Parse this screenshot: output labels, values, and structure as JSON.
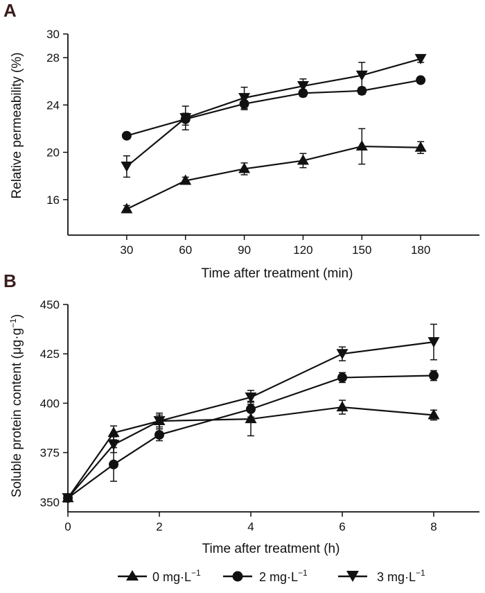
{
  "figure": {
    "legend": [
      {
        "marker": "triangle-up",
        "label": "0 mg·L",
        "sup": "−1"
      },
      {
        "marker": "circle",
        "label": "2 mg·L",
        "sup": "−1"
      },
      {
        "marker": "triangle-down",
        "label": "3 mg·L",
        "sup": "−1"
      }
    ]
  },
  "chart_data": [
    {
      "panel": "A",
      "type": "line",
      "xlabel": "Time after treatment (min)",
      "ylabel": "Relative permeability (%)",
      "x": [
        30,
        60,
        90,
        120,
        150,
        180
      ],
      "xlim": [
        0,
        210
      ],
      "ylim": [
        13,
        30
      ],
      "yticks": [
        16,
        20,
        24,
        28,
        30
      ],
      "xticks": [
        30,
        60,
        90,
        120,
        150,
        180
      ],
      "series": [
        {
          "name": "0 mg·L−1",
          "marker": "triangle-up",
          "values": [
            15.2,
            17.6,
            18.6,
            19.3,
            20.5,
            20.4
          ],
          "errors": [
            0.3,
            0.3,
            0.5,
            0.6,
            1.5,
            0.5
          ]
        },
        {
          "name": "2 mg·L−1",
          "marker": "circle",
          "values": [
            21.4,
            22.8,
            24.1,
            25.0,
            25.2,
            26.1
          ],
          "errors": [
            0.1,
            0.5,
            0.5,
            0.3,
            0.3,
            0.2
          ]
        },
        {
          "name": "3 mg·L−1",
          "marker": "triangle-down",
          "values": [
            18.8,
            22.9,
            24.6,
            25.6,
            26.5,
            27.9
          ],
          "errors": [
            0.9,
            1.0,
            0.9,
            0.6,
            1.1,
            0.3
          ]
        }
      ],
      "legend": "bottom-center",
      "grid": false
    },
    {
      "panel": "B",
      "type": "line",
      "xlabel": "Time after treatment (h)",
      "ylabel": "Soluble protein content (μg·g",
      "ylabel_sup": "−1",
      "ylabel_end": ")",
      "x": [
        0,
        1,
        2,
        4,
        6,
        8
      ],
      "xlim": [
        0,
        9
      ],
      "ylim": [
        345,
        450
      ],
      "yticks": [
        350,
        375,
        400,
        425,
        450
      ],
      "xticks": [
        0,
        2,
        4,
        6,
        8
      ],
      "series": [
        {
          "name": "0 mg·L−1",
          "marker": "triangle-up",
          "values": [
            352,
            385,
            391,
            392,
            398,
            394
          ],
          "errors": [
            1.5,
            3.5,
            3.0,
            8.5,
            3.5,
            2.5
          ]
        },
        {
          "name": "2 mg·L−1",
          "marker": "circle",
          "values": [
            352,
            369,
            384,
            397,
            413,
            414
          ],
          "errors": [
            1.5,
            8.5,
            3.0,
            4.0,
            2.5,
            2.5
          ]
        },
        {
          "name": "3 mg·L−1",
          "marker": "triangle-down",
          "values": [
            352,
            379,
            391,
            403,
            425,
            431
          ],
          "errors": [
            1.5,
            4.0,
            4.0,
            3.5,
            3.5,
            9.0
          ]
        }
      ],
      "legend": "bottom-center",
      "grid": false
    }
  ]
}
